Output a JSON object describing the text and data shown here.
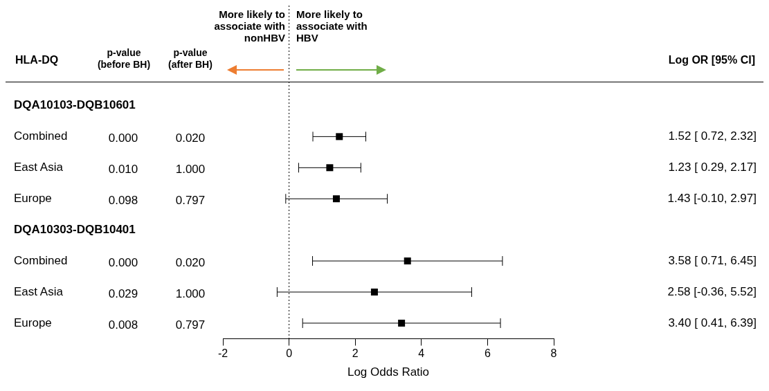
{
  "chart_data": {
    "type": "scatter",
    "orientation": "horizontal",
    "ylabel": "HLA-DQ",
    "xlabel": "Log Odds Ratio",
    "categories": [
      "DQA10103-DQB10601",
      "Combined",
      "East Asia",
      "Europe",
      "DQA10303-DQB10401",
      "Combined",
      "East Asia",
      "Europe"
    ],
    "xlim": [
      -2,
      8
    ],
    "xticks": [
      -2,
      0,
      2,
      4,
      6,
      8
    ],
    "grid": false,
    "legend": false,
    "marker": "square",
    "annotations": [
      "More likely to associate with nonHBV",
      "More likely to associate with HBV",
      "p-value (before BH)",
      "p-value (after BH)",
      "Log OR [95% CI]"
    ],
    "ref_lines": [
      {
        "axis": "x",
        "value": 0,
        "line_style": "dotted",
        "color": "#000000"
      }
    ],
    "series": [
      {
        "color": "#000000",
        "values": [
          null,
          1.52,
          1.23,
          1.43,
          null,
          3.58,
          2.58,
          3.4
        ],
        "errors": [
          null,
          [
            0.72,
            2.32
          ],
          [
            0.29,
            2.17
          ],
          [
            -0.1,
            2.97
          ],
          null,
          [
            0.71,
            6.45
          ],
          [
            -0.36,
            5.52
          ],
          [
            0.41,
            6.39
          ]
        ],
        "value_labels": [
          null,
          "1.52 [ 0.72, 2.32]",
          "1.23 [ 0.29, 2.17]",
          "1.43 [-0.10, 2.97]",
          null,
          "3.58 [ 0.71, 6.45]",
          "2.58 [-0.36, 5.52]",
          "3.40 [ 0.41, 6.39]"
        ]
      },
      {
        "values": [
          null,
          null,
          null,
          null,
          null,
          null,
          null,
          null
        ],
        "value_labels": [
          null,
          "0.000",
          "0.010",
          "0.098",
          null,
          "0.000",
          "0.029",
          "0.008"
        ]
      },
      {
        "values": [
          null,
          null,
          null,
          null,
          null,
          null,
          null,
          null
        ],
        "value_labels": [
          null,
          "0.020",
          "1.000",
          "0.797",
          null,
          "0.020",
          "1.000",
          "0.797"
        ]
      }
    ]
  }
}
